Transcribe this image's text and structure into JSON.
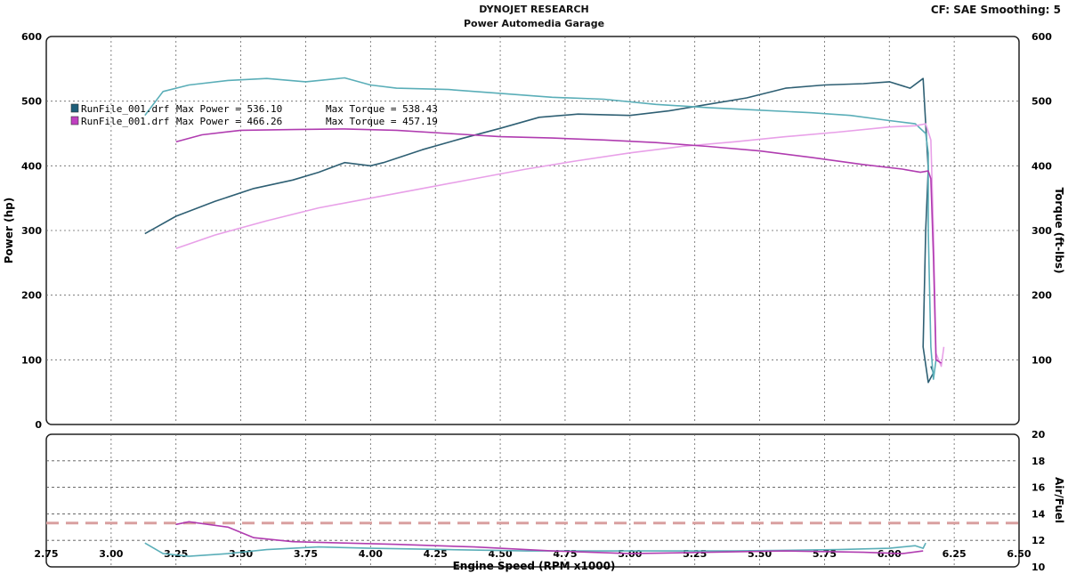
{
  "header": {
    "title": "DYNOJET RESEARCH",
    "subtitle": "Power Automedia Garage",
    "settings": "CF: SAE  Smoothing: 5"
  },
  "legend": [
    {
      "file": "RunFile_001.drf",
      "power_label": "Max Power = 536.10",
      "torque_label": "Max Torque = 538.43",
      "color": "#1f5f7a"
    },
    {
      "file": "RunFile_001.drf",
      "power_label": "Max Power = 466.26",
      "torque_label": "Max Torque = 457.19",
      "color": "#c040c0"
    }
  ],
  "colors": {
    "run1_power": "#2e5f73",
    "run1_torque": "#5aaeb8",
    "run2_power": "#e8a0e8",
    "run2_torque": "#b03cb0",
    "afr_target": "#d9a0a0"
  },
  "chart_data": [
    {
      "type": "line",
      "title": "DYNOJET RESEARCH",
      "subtitle": "Power Automedia Garage",
      "xlabel": "Engine Speed (RPM x1000)",
      "ylabel": "Power (hp)",
      "ylabel_right": "Torque (ft-lbs)",
      "xlim": [
        2.75,
        6.5
      ],
      "ylim": [
        0,
        600
      ],
      "ylim_right": [
        0,
        600
      ],
      "x_ticks": [
        "2.75",
        "3.00",
        "3.25",
        "3.50",
        "3.75",
        "4.00",
        "4.25",
        "4.50",
        "4.75",
        "5.00",
        "5.25",
        "5.50",
        "5.75",
        "6.00",
        "6.25",
        "6.50"
      ],
      "y_ticks": [
        "0",
        "100",
        "200",
        "300",
        "400",
        "500",
        "600"
      ],
      "y_ticks_right": [
        "100",
        "200",
        "300",
        "400",
        "500",
        "600"
      ],
      "grid": true,
      "legend_position": "top-left",
      "series": [
        {
          "name": "RunFile_001.drf Max Power = 536.10",
          "axis": "left",
          "x": [
            3.13,
            3.25,
            3.4,
            3.55,
            3.7,
            3.8,
            3.9,
            4.0,
            4.05,
            4.2,
            4.35,
            4.5,
            4.65,
            4.8,
            5.0,
            5.15,
            5.3,
            5.45,
            5.6,
            5.75,
            5.9,
            6.0,
            6.08,
            6.13,
            6.15,
            6.14,
            6.13,
            6.15,
            6.17,
            6.16
          ],
          "y": [
            295,
            322,
            345,
            365,
            378,
            390,
            405,
            400,
            405,
            425,
            442,
            458,
            475,
            480,
            478,
            485,
            495,
            505,
            520,
            525,
            527,
            530,
            520,
            535,
            395,
            300,
            120,
            65,
            80,
            90
          ]
        },
        {
          "name": "RunFile_001.drf Max Torque = 538.43",
          "axis": "right",
          "x": [
            3.13,
            3.2,
            3.3,
            3.45,
            3.6,
            3.75,
            3.9,
            4.0,
            4.1,
            4.3,
            4.5,
            4.7,
            4.9,
            5.1,
            5.3,
            5.5,
            5.7,
            5.85,
            6.0,
            6.1,
            6.14,
            6.15,
            6.15,
            6.16,
            6.17,
            6.18
          ],
          "y": [
            478,
            515,
            525,
            532,
            535,
            530,
            536,
            525,
            520,
            518,
            512,
            506,
            503,
            495,
            490,
            486,
            482,
            478,
            470,
            465,
            450,
            420,
            300,
            120,
            70,
            100
          ]
        },
        {
          "name": "RunFile_001.drf Max Power = 466.26",
          "axis": "left",
          "x": [
            3.25,
            3.4,
            3.6,
            3.8,
            4.0,
            4.2,
            4.4,
            4.6,
            4.8,
            5.0,
            5.2,
            5.4,
            5.6,
            5.8,
            6.0,
            6.1,
            6.14,
            6.16,
            6.17,
            6.18,
            6.2,
            6.21
          ],
          "y": [
            272,
            293,
            315,
            335,
            350,
            365,
            380,
            395,
            408,
            420,
            430,
            437,
            445,
            452,
            460,
            462,
            465,
            440,
            300,
            110,
            90,
            120
          ]
        },
        {
          "name": "RunFile_001.drf Max Torque = 457.19",
          "axis": "right",
          "x": [
            3.25,
            3.35,
            3.5,
            3.7,
            3.9,
            4.1,
            4.3,
            4.5,
            4.7,
            4.9,
            5.1,
            5.3,
            5.5,
            5.7,
            5.9,
            6.05,
            6.12,
            6.15,
            6.16,
            6.17,
            6.18,
            6.2
          ],
          "y": [
            437,
            448,
            455,
            456,
            457,
            455,
            450,
            445,
            443,
            440,
            436,
            430,
            423,
            413,
            402,
            395,
            390,
            392,
            380,
            260,
            100,
            95
          ]
        }
      ]
    },
    {
      "type": "line",
      "ylabel_right": "Air/Fuel",
      "xlim": [
        2.75,
        6.5
      ],
      "ylim": [
        10,
        20
      ],
      "y_ticks_right": [
        "10",
        "12",
        "14",
        "16",
        "18",
        "20"
      ],
      "grid": true,
      "series": [
        {
          "name": "",
          "x": [
            2.75,
            6.5
          ],
          "y": [
            13.3,
            13.3
          ],
          "style": "dashed"
        },
        {
          "name": "",
          "x": [
            3.13,
            3.2,
            3.3,
            3.45,
            3.6,
            3.8,
            4.0,
            4.3,
            4.6,
            5.0,
            5.4,
            5.8,
            6.0,
            6.1,
            6.13,
            6.14
          ],
          "y": [
            11.8,
            11.0,
            10.8,
            11.0,
            11.3,
            11.5,
            11.4,
            11.3,
            11.2,
            11.2,
            11.2,
            11.3,
            11.4,
            11.6,
            11.4,
            11.8
          ]
        },
        {
          "name": "",
          "x": [
            3.25,
            3.3,
            3.45,
            3.55,
            3.7,
            3.9,
            4.1,
            4.4,
            4.7,
            5.0,
            5.3,
            5.6,
            5.9,
            6.05,
            6.13
          ],
          "y": [
            13.2,
            13.4,
            13.0,
            12.2,
            11.9,
            11.8,
            11.7,
            11.5,
            11.2,
            11.0,
            11.1,
            11.2,
            11.1,
            11.0,
            11.2
          ]
        }
      ]
    }
  ]
}
